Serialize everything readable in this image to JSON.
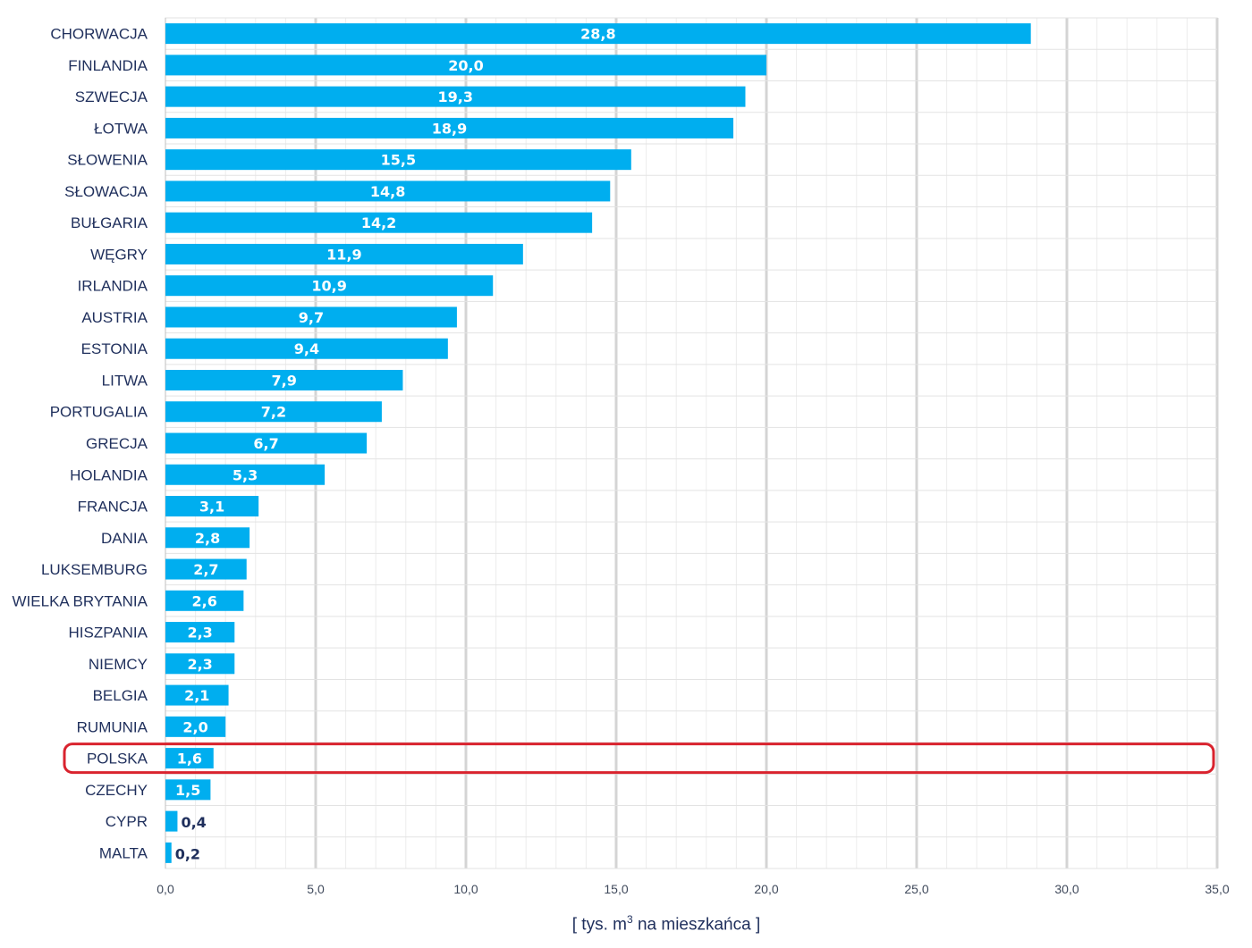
{
  "chart_data": {
    "type": "bar",
    "orientation": "horizontal",
    "categories": [
      "CHORWACJA",
      "FINLANDIA",
      "SZWECJA",
      "ŁOTWA",
      "SŁOWENIA",
      "SŁOWACJA",
      "BUŁGARIA",
      "WĘGRY",
      "IRLANDIA",
      "AUSTRIA",
      "ESTONIA",
      "LITWA",
      "PORTUGALIA",
      "GRECJA",
      "HOLANDIA",
      "FRANCJA",
      "DANIA",
      "LUKSEMBURG",
      "WIELKA BRYTANIA",
      "HISZPANIA",
      "NIEMCY",
      "BELGIA",
      "RUMUNIA",
      "POLSKA",
      "CZECHY",
      "CYPR",
      "MALTA"
    ],
    "values": [
      28.8,
      20.0,
      19.3,
      18.9,
      15.5,
      14.8,
      14.2,
      11.9,
      10.9,
      9.7,
      9.4,
      7.9,
      7.2,
      6.7,
      5.3,
      3.1,
      2.8,
      2.7,
      2.6,
      2.3,
      2.3,
      2.1,
      2.0,
      1.6,
      1.5,
      0.4,
      0.2
    ],
    "value_labels": [
      "28,8",
      "20,0",
      "19,3",
      "18,9",
      "15,5",
      "14,8",
      "14,2",
      "11,9",
      "10,9",
      "9,7",
      "9,4",
      "7,9",
      "7,2",
      "6,7",
      "5,3",
      "3,1",
      "2,8",
      "2,7",
      "2,6",
      "2,3",
      "2,3",
      "2,1",
      "2,0",
      "1,6",
      "1,5",
      "0,4",
      "0,2"
    ],
    "xlim": [
      0,
      35
    ],
    "x_ticks": [
      0,
      5,
      10,
      15,
      20,
      25,
      30,
      35
    ],
    "x_tick_labels": [
      "0,0",
      "5,0",
      "10,0",
      "15,0",
      "20,0",
      "25,0",
      "30,0",
      "35,0"
    ],
    "xlabel": {
      "pre": "[ tys. m",
      "sup": "3",
      "post": " na mieszkańca ]"
    },
    "title": "",
    "grid": true,
    "highlight": "POLSKA",
    "colors": {
      "bar": "#00aeef",
      "highlight_frame": "#d9232e",
      "label_text": "#1f2f5c"
    }
  }
}
